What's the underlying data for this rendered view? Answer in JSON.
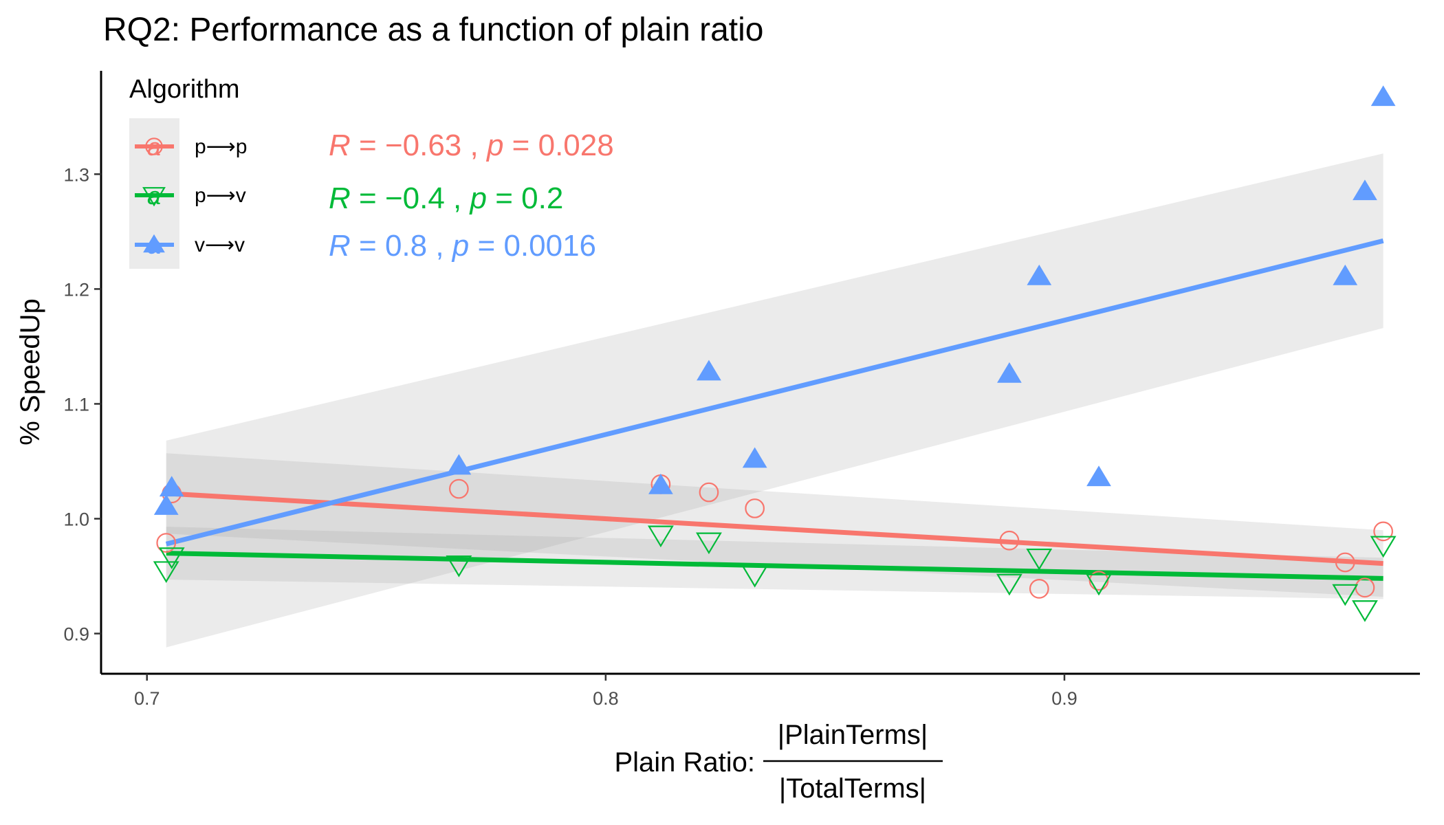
{
  "chart_data": {
    "type": "scatter",
    "title": "RQ2: Performance as a function of plain ratio",
    "xlabel": "Plain Ratio:",
    "xlabel_fraction": {
      "numerator": "|PlainTerms|",
      "denominator": "|TotalTerms|"
    },
    "ylabel": "% SpeedUp",
    "xlim": [
      0.69,
      0.9775
    ],
    "ylim": [
      0.865,
      1.39
    ],
    "xticks": [
      0.7,
      0.8,
      0.9
    ],
    "xtick_labels": [
      "0.7",
      "0.8",
      "0.9"
    ],
    "yticks": [
      0.9,
      1.0,
      1.1,
      1.2,
      1.3
    ],
    "ytick_labels": [
      "0.9",
      "1.0",
      "1.1",
      "1.2",
      "1.3"
    ],
    "grid": false,
    "legend": {
      "title": "Algorithm",
      "position": "top-left",
      "key_glyph": "a"
    },
    "series": [
      {
        "name": "p⟶p",
        "color": "#F8766D",
        "marker": "circle-open",
        "x": [
          0.7042,
          0.7054,
          0.768,
          0.812,
          0.8225,
          0.8325,
          0.888,
          0.8945,
          0.9075,
          0.9612,
          0.9655,
          0.9695
        ],
        "y": [
          0.979,
          1.022,
          1.026,
          1.03,
          1.023,
          1.009,
          0.981,
          0.939,
          0.946,
          0.962,
          0.94,
          0.989
        ],
        "fit": {
          "x": [
            0.7042,
            0.9695
          ],
          "y": [
            1.022,
            0.961
          ]
        },
        "band": {
          "x": [
            0.7042,
            0.9695
          ],
          "upper": [
            1.057,
            0.99
          ],
          "lower": [
            0.987,
            0.932
          ]
        },
        "stat_label": {
          "R": "−0.63",
          "p": "0.028"
        }
      },
      {
        "name": "p⟶v",
        "color": "#00BA38",
        "marker": "triangle-down-open",
        "x": [
          0.7042,
          0.7054,
          0.768,
          0.812,
          0.8225,
          0.8325,
          0.888,
          0.8945,
          0.9075,
          0.9612,
          0.9655,
          0.9695
        ],
        "y": [
          0.955,
          0.967,
          0.96,
          0.986,
          0.98,
          0.951,
          0.944,
          0.966,
          0.944,
          0.935,
          0.921,
          0.977
        ],
        "fit": {
          "x": [
            0.7042,
            0.9695
          ],
          "y": [
            0.97,
            0.948
          ]
        },
        "band": {
          "x": [
            0.7042,
            0.9695
          ],
          "upper": [
            0.993,
            0.966
          ],
          "lower": [
            0.947,
            0.93
          ]
        },
        "stat_label": {
          "R": "−0.4",
          "p": "0.2"
        }
      },
      {
        "name": "v⟶v",
        "color": "#619CFF",
        "marker": "triangle-up",
        "x": [
          0.7042,
          0.7054,
          0.768,
          0.812,
          0.8225,
          0.8325,
          0.888,
          0.8945,
          0.9075,
          0.9612,
          0.9655,
          0.9695
        ],
        "y": [
          1.011,
          1.027,
          1.046,
          1.029,
          1.128,
          1.052,
          1.126,
          1.211,
          1.036,
          1.211,
          1.285,
          1.367
        ],
        "fit": {
          "x": [
            0.7042,
            0.9695
          ],
          "y": [
            0.978,
            1.242
          ]
        },
        "band": {
          "x": [
            0.7042,
            0.9695
          ],
          "upper": [
            1.068,
            1.318
          ],
          "lower": [
            0.888,
            1.166
          ]
        },
        "stat_label": {
          "R": "0.8",
          "p": "0.0016"
        }
      }
    ]
  }
}
